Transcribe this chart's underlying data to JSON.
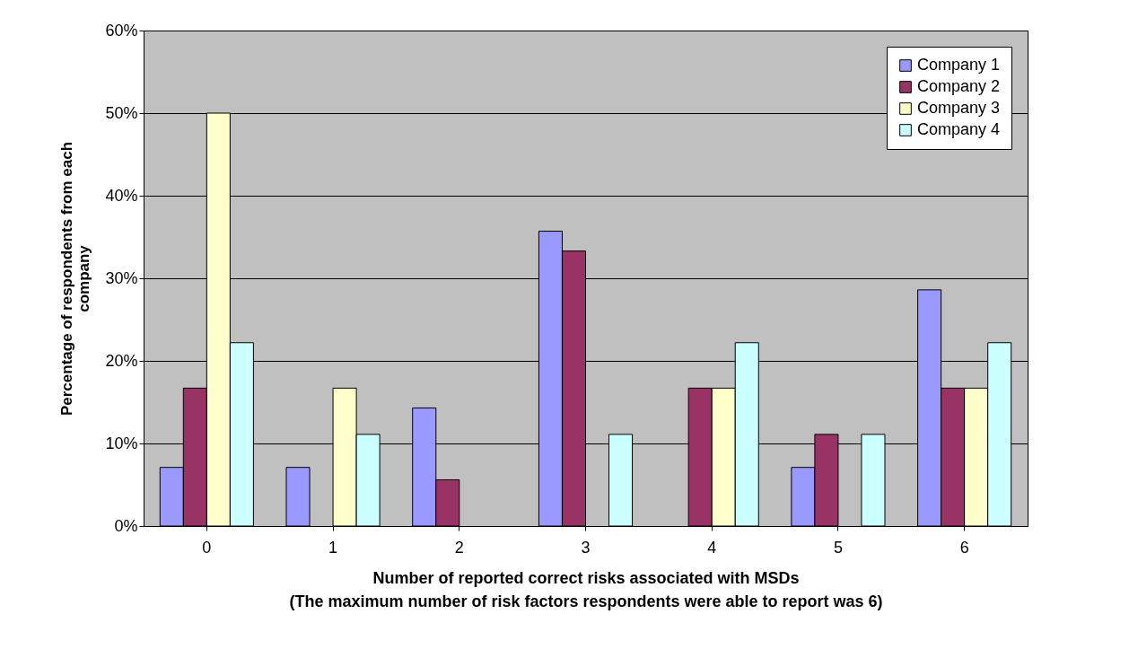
{
  "chart_data": {
    "type": "bar",
    "xlabel": "Number of reported correct risks associated with MSDs\n(The maximum number of risk factors respondents were able to report was 6)",
    "ylabel": "Percentage of respondents from each\ncompany",
    "categories": [
      "0",
      "1",
      "2",
      "3",
      "4",
      "5",
      "6"
    ],
    "series": [
      {
        "name": "Company 1",
        "color": "#9999ff",
        "values": [
          7.1,
          7.1,
          14.3,
          35.7,
          0,
          7.1,
          28.6
        ]
      },
      {
        "name": "Company 2",
        "color": "#993366",
        "values": [
          16.7,
          0,
          5.6,
          33.3,
          16.7,
          11.1,
          16.7
        ]
      },
      {
        "name": "Company 3",
        "color": "#ffffcc",
        "values": [
          50,
          16.7,
          0,
          0,
          16.7,
          0,
          16.7
        ]
      },
      {
        "name": "Company 4",
        "color": "#ccffff",
        "values": [
          22.2,
          11.1,
          0,
          11.1,
          22.2,
          11.1,
          22.2
        ]
      }
    ],
    "ylim": [
      0,
      60
    ],
    "yticks": [
      {
        "value": 0,
        "label": "0%"
      },
      {
        "value": 10,
        "label": "10%"
      },
      {
        "value": 20,
        "label": "20%"
      },
      {
        "value": 30,
        "label": "30%"
      },
      {
        "value": 40,
        "label": "40%"
      },
      {
        "value": 50,
        "label": "50%"
      },
      {
        "value": 60,
        "label": "60%"
      }
    ],
    "grid": "y",
    "legend": "top right"
  }
}
